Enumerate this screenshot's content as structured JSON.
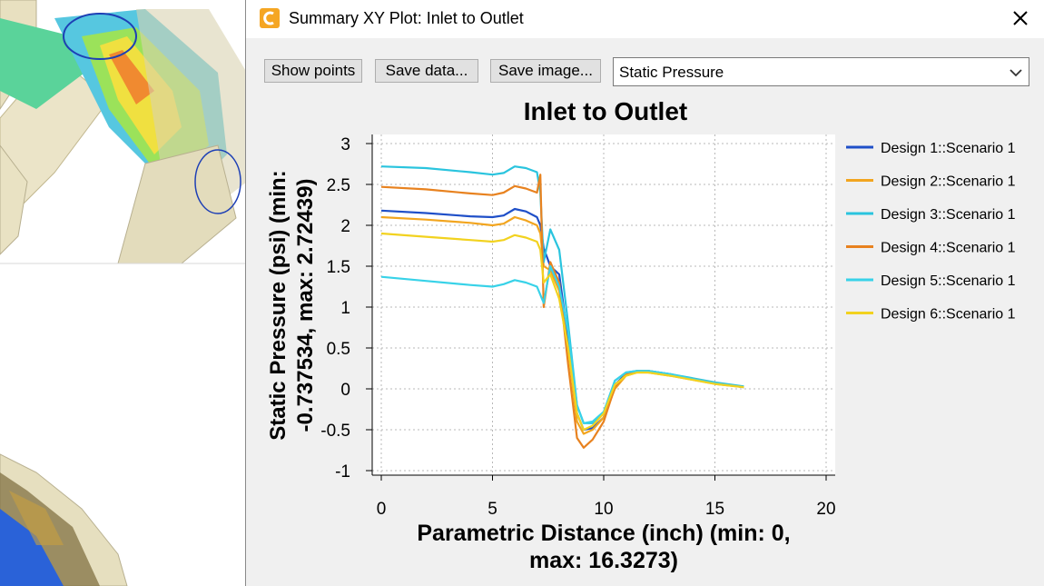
{
  "window": {
    "title": "Summary XY Plot: Inlet to Outlet",
    "icon": "app-c-logo-icon",
    "close_icon": "close-icon"
  },
  "toolbar": {
    "show_points_label": "Show points",
    "save_data_label": "Save data...",
    "save_image_label": "Save image...",
    "variable_select_value": "Static Pressure"
  },
  "chart_data": {
    "type": "line",
    "title": "Inlet to Outlet",
    "xlabel": "Parametric Distance (inch) (min: 0, max: 16.3273)",
    "xlabel_lines": [
      "Parametric Distance (inch) (min: 0,",
      "max: 16.3273)"
    ],
    "ylabel": "Static Pressure (psi) (min: -0.737534, max: 2.72439)",
    "ylabel_lines": [
      "Static Pressure (psi) (min:",
      "-0.737534, max: 2.72439)"
    ],
    "xlim": [
      0,
      20
    ],
    "ylim": [
      -1,
      3
    ],
    "xticks": [
      0,
      5,
      10,
      15,
      20
    ],
    "yticks": [
      -1,
      -0.5,
      0,
      0.5,
      1,
      1.5,
      2,
      2.5,
      3
    ],
    "ytick_labels": [
      "-1",
      "-0.5",
      "0",
      "0.5",
      "1",
      "1.5",
      "2",
      "2.5",
      "3"
    ],
    "grid": true,
    "legend_position": "right",
    "series": [
      {
        "name": "Design 1::Scenario 1",
        "color": "#1f4fc8",
        "x": [
          0,
          2,
          4,
          5,
          5.5,
          6,
          6.5,
          7,
          7.15,
          7.3,
          7.6,
          8.0,
          8.4,
          8.8,
          9.1,
          9.5,
          10,
          10.5,
          11,
          11.5,
          12,
          13,
          14,
          15,
          16.3
        ],
        "y": [
          2.18,
          2.15,
          2.11,
          2.1,
          2.12,
          2.2,
          2.17,
          2.1,
          2.0,
          1.72,
          1.5,
          1.4,
          0.6,
          -0.3,
          -0.5,
          -0.48,
          -0.35,
          0.05,
          0.18,
          0.22,
          0.22,
          0.18,
          0.12,
          0.07,
          0.02
        ]
      },
      {
        "name": "Design 2::Scenario 1",
        "color": "#f2a51f",
        "x": [
          0,
          2,
          4,
          5,
          5.5,
          6,
          6.5,
          7,
          7.15,
          7.3,
          7.6,
          8.0,
          8.4,
          8.8,
          9.1,
          9.5,
          10,
          10.5,
          11,
          11.5,
          12,
          13,
          14,
          15,
          16.3
        ],
        "y": [
          2.1,
          2.07,
          2.03,
          2.0,
          2.02,
          2.1,
          2.06,
          2.0,
          1.9,
          1.5,
          1.45,
          1.2,
          0.5,
          -0.4,
          -0.55,
          -0.5,
          -0.35,
          0.0,
          0.16,
          0.2,
          0.2,
          0.16,
          0.11,
          0.06,
          0.02
        ]
      },
      {
        "name": "Design 3::Scenario 1",
        "color": "#2ac4de",
        "x": [
          0,
          2,
          4,
          5,
          5.5,
          6,
          6.5,
          7,
          7.15,
          7.3,
          7.6,
          8.0,
          8.4,
          8.8,
          9.1,
          9.5,
          10,
          10.5,
          11,
          11.5,
          12,
          13,
          14,
          15,
          16.3
        ],
        "y": [
          2.72,
          2.7,
          2.65,
          2.62,
          2.64,
          2.72,
          2.7,
          2.65,
          2.4,
          1.55,
          1.95,
          1.7,
          0.8,
          -0.2,
          -0.42,
          -0.42,
          -0.3,
          0.1,
          0.2,
          0.22,
          0.22,
          0.18,
          0.13,
          0.08,
          0.03
        ]
      },
      {
        "name": "Design 4::Scenario 1",
        "color": "#e8821f",
        "x": [
          0,
          2,
          4,
          5,
          5.5,
          6,
          6.5,
          7,
          7.15,
          7.3,
          7.6,
          8.0,
          8.4,
          8.8,
          9.1,
          9.5,
          10,
          10.5,
          11,
          11.5,
          12,
          13,
          14,
          15,
          16.3
        ],
        "y": [
          2.47,
          2.44,
          2.39,
          2.37,
          2.4,
          2.48,
          2.45,
          2.4,
          2.62,
          1.0,
          1.55,
          1.3,
          0.3,
          -0.6,
          -0.72,
          -0.62,
          -0.4,
          0.02,
          0.18,
          0.22,
          0.22,
          0.17,
          0.12,
          0.07,
          0.02
        ]
      },
      {
        "name": "Design 5::Scenario 1",
        "color": "#38d2e8",
        "x": [
          0,
          2,
          4,
          5,
          5.5,
          6,
          6.5,
          7,
          7.15,
          7.3,
          7.6,
          8.0,
          8.4,
          8.8,
          9.1,
          9.5,
          10,
          10.5,
          11,
          11.5,
          12,
          13,
          14,
          15,
          16.3
        ],
        "y": [
          1.37,
          1.32,
          1.27,
          1.25,
          1.28,
          1.33,
          1.3,
          1.25,
          1.15,
          1.05,
          1.5,
          1.25,
          0.7,
          -0.2,
          -0.42,
          -0.4,
          -0.28,
          0.1,
          0.2,
          0.22,
          0.22,
          0.18,
          0.12,
          0.07,
          0.02
        ]
      },
      {
        "name": "Design 6::Scenario 1",
        "color": "#f2d21f",
        "x": [
          0,
          2,
          4,
          5,
          5.5,
          6,
          6.5,
          7,
          7.15,
          7.3,
          7.6,
          8.0,
          8.4,
          8.8,
          9.1,
          9.5,
          10,
          10.5,
          11,
          11.5,
          12,
          13,
          14,
          15,
          16.3
        ],
        "y": [
          1.9,
          1.86,
          1.82,
          1.8,
          1.82,
          1.88,
          1.85,
          1.8,
          1.7,
          1.3,
          1.4,
          1.1,
          0.5,
          -0.3,
          -0.5,
          -0.45,
          -0.3,
          0.05,
          0.16,
          0.2,
          0.2,
          0.16,
          0.11,
          0.06,
          0.02
        ]
      }
    ]
  }
}
